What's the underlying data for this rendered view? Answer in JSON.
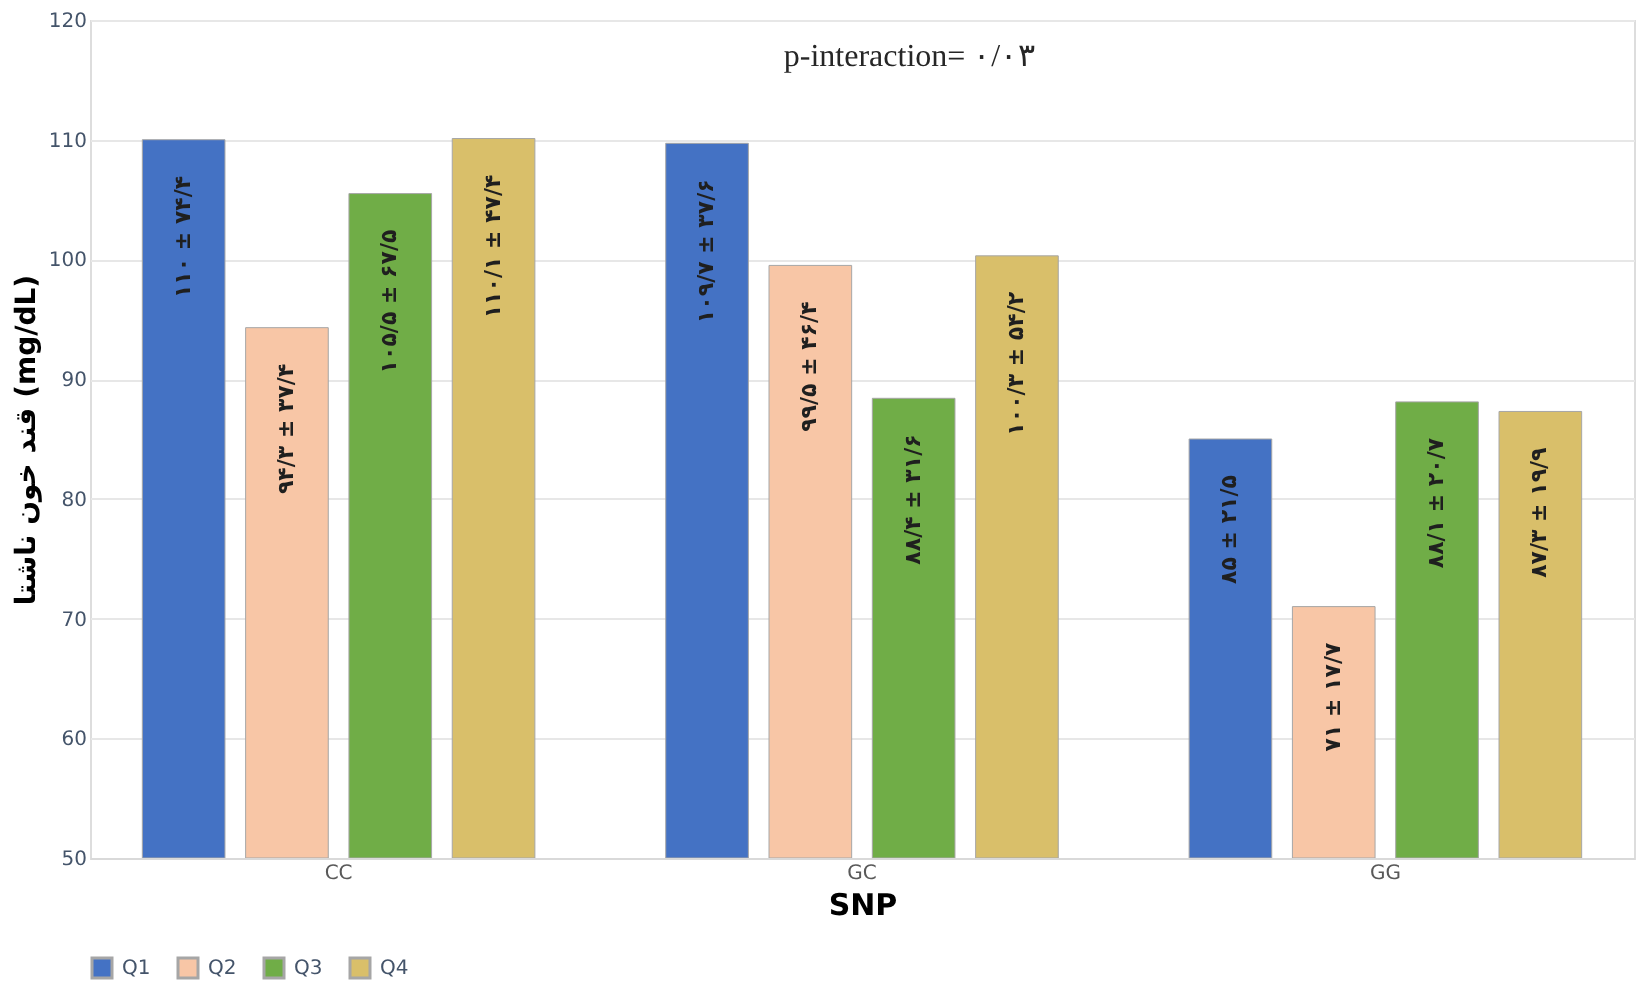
{
  "chart_data": {
    "type": "bar",
    "categories": [
      "CC",
      "GC",
      "GG"
    ],
    "xlabel": "SNP",
    "ylabel": "قند خون ناشتا (mg/dL)",
    "annotations": [
      "p-interaction= ۰/۰۳"
    ],
    "ylim": [
      50,
      120
    ],
    "yticks": [
      50,
      60,
      70,
      80,
      90,
      100,
      110,
      120
    ],
    "grid": "y",
    "legend": "bottom",
    "series": [
      {
        "name": "Q1",
        "color": "#4472c4",
        "values": [
          110,
          109.7,
          85
        ],
        "value_labels": [
          "۱۱۰ ± ۷۴/۴",
          "۱۰۹/۷ ± ۳۷/۶",
          "۸۵ ± ۲۱/۵"
        ]
      },
      {
        "name": "Q2",
        "color": "#f8c6a6",
        "values": [
          94.3,
          99.5,
          71
        ],
        "value_labels": [
          "۹۴/۳ ± ۳۷/۴",
          "۹۹/۵ ± ۴۶/۴",
          "۷۱ ± ۱۷/۷"
        ]
      },
      {
        "name": "Q3",
        "color": "#70ad47",
        "values": [
          105.5,
          88.4,
          88.1
        ],
        "value_labels": [
          "۱۰۵/۵ ± ۶۷/۵",
          "۸۸/۴ ± ۳۱/۶",
          "۸۸/۱ ± ۲۰/۷"
        ]
      },
      {
        "name": "Q4",
        "color": "#d9bf6a",
        "values": [
          110.1,
          100.3,
          87.3
        ],
        "value_labels": [
          "۱۱۰/۱ ± ۴۷/۴",
          "۱۰۰/۳ ± ۵۴/۲",
          "۸۷/۳ ± ۱۹/۹"
        ]
      }
    ]
  }
}
